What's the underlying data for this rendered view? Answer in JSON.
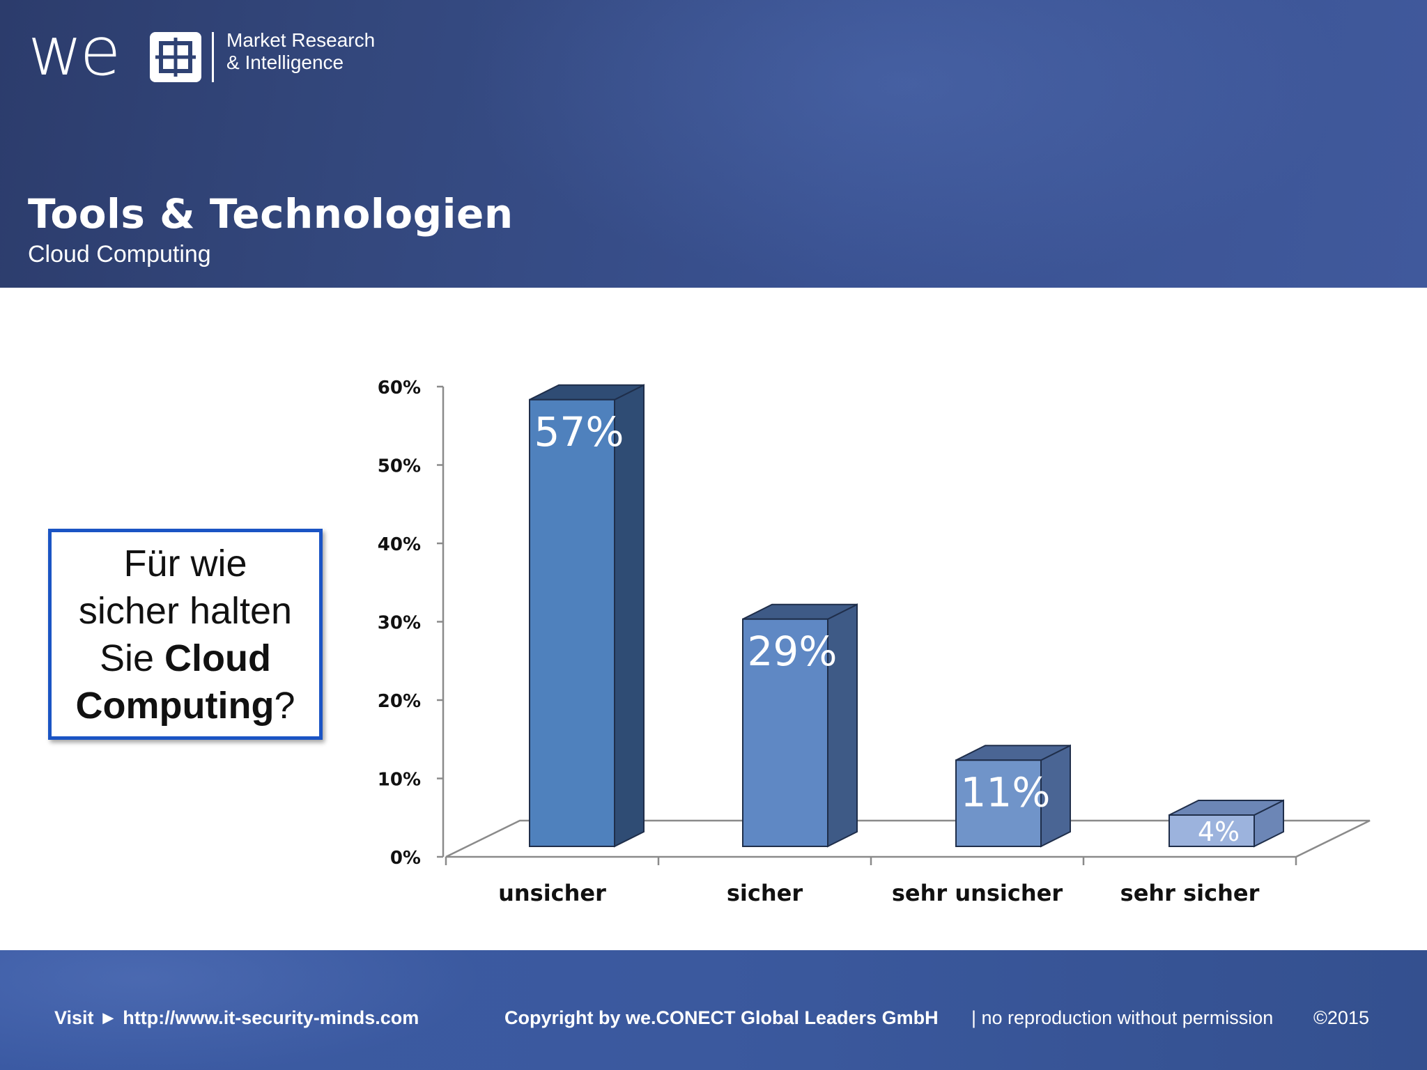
{
  "header": {
    "logo_text": "we",
    "logo_tagline_1": "Market Research",
    "logo_tagline_2": "& Intelligence",
    "title": "Tools & Technologien",
    "subtitle": "Cloud Computing"
  },
  "question": {
    "line1": "Für wie",
    "line2": "sicher halten",
    "line3_prefix": "Sie ",
    "line3_bold": "Cloud",
    "line4_bold": "Computing",
    "line4_suffix": "?"
  },
  "chart_data": {
    "type": "bar",
    "style": "3d",
    "categories": [
      "unsicher",
      "sicher",
      "sehr unsicher",
      "sehr sicher"
    ],
    "values": [
      57,
      29,
      11,
      4
    ],
    "data_labels": [
      "57%",
      "29%",
      "11%",
      "4%"
    ],
    "y_ticks": [
      "0%",
      "10%",
      "20%",
      "30%",
      "40%",
      "50%",
      "60%"
    ],
    "ylim": [
      0,
      60
    ],
    "grid": false,
    "colors": [
      "#4f81bd",
      "#5f88c4",
      "#7094c9",
      "#9cb3dd"
    ],
    "side_colors": [
      "#2f4c74",
      "#3e5a86",
      "#4a6594",
      "#6c86b6"
    ]
  },
  "footer": {
    "visit_label": "Visit ► http://www.it-security-minds.com",
    "copyright": "Copyright by we.CONECT Global Leaders GmbH",
    "notice": "| no reproduction without permission",
    "year": "©2015"
  }
}
